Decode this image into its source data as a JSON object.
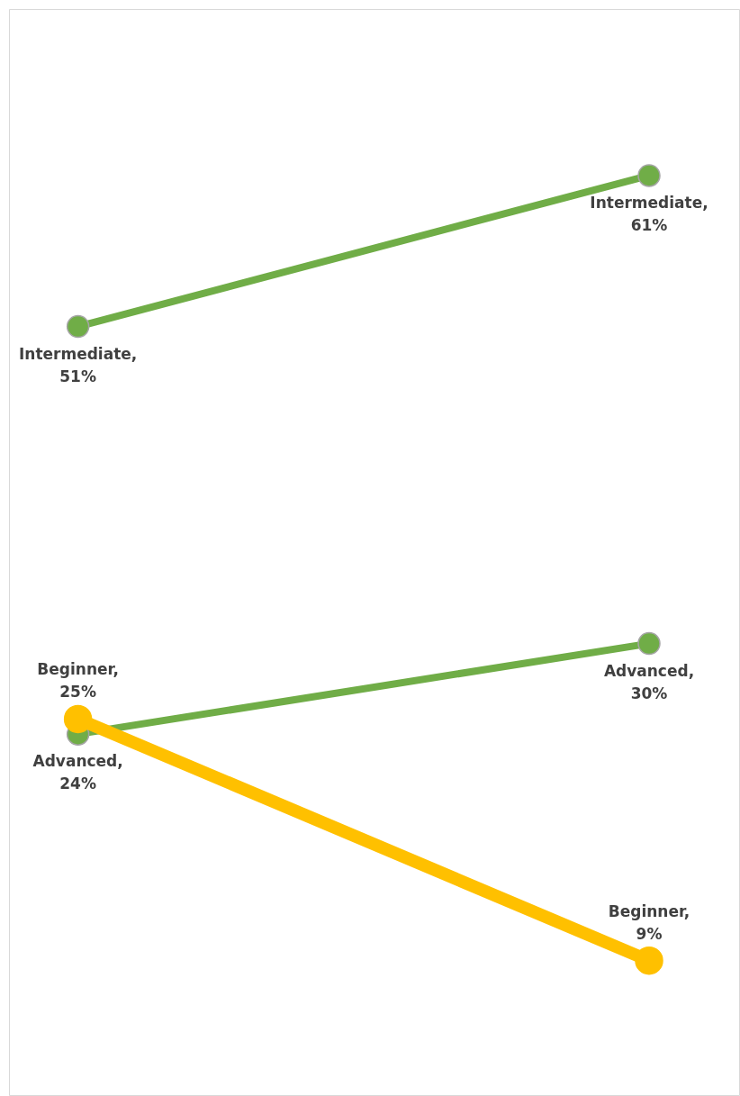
{
  "chart_data": {
    "type": "line",
    "categories": [
      null,
      null
    ],
    "ylim": [
      0,
      72
    ],
    "tick_labels": false,
    "grid": false,
    "marker": "circle",
    "series": [
      {
        "name": "Intermediate,",
        "color": "#70ad47",
        "values": [
          51,
          61
        ],
        "value_labels": [
          "51%",
          "61%"
        ]
      },
      {
        "name": "Advanced,",
        "color": "#70ad47",
        "values": [
          24,
          30
        ],
        "value_labels": [
          "24%",
          "30%"
        ]
      },
      {
        "name": "Beginner,",
        "color": "#ffc000",
        "values": [
          25,
          9
        ],
        "value_labels": [
          "25%",
          "9%"
        ]
      }
    ]
  }
}
